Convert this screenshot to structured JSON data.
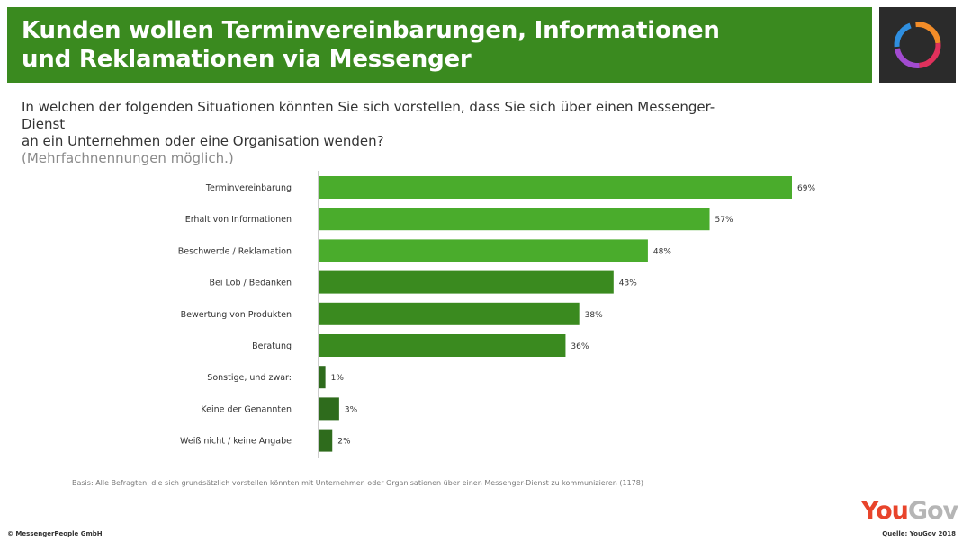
{
  "header": {
    "title_line1": "Kunden wollen Terminvereinbarungen, Informationen",
    "title_line2": "und Reklamationen via Messenger"
  },
  "question": {
    "line1": "In welchen der folgenden Situationen könnten Sie sich vorstellen, dass Sie sich über einen Messenger-Dienst",
    "line2": "an ein Unternehmen oder eine Organisation wenden?",
    "hint": "(Mehrfachnennungen möglich.)"
  },
  "footer": {
    "basis": "Basis: Alle Befragten, die sich grundsätzlich vorstellen könnten mit Unternehmen oder Organisationen über einen Messenger-Dienst zu kommunizieren (1178)",
    "copyright": "© MessengerPeople GmbH",
    "brand_you": "You",
    "brand_gov": "Gov",
    "source": "Quelle: YouGov 2018"
  },
  "colors": {
    "banner": "#3a8a1f",
    "bar_light": "#4aac2c",
    "bar_mid": "#3a8a1f",
    "bar_dark": "#2e6b1c"
  },
  "chart_data": {
    "type": "bar",
    "orientation": "horizontal",
    "title": "",
    "xlabel": "",
    "ylabel": "",
    "xlim": [
      0,
      69
    ],
    "grid": false,
    "categories": [
      "Terminvereinbarung",
      "Erhalt von Informationen",
      "Beschwerde / Reklamation",
      "Bei Lob / Bedanken",
      "Bewertung von Produkten",
      "Beratung",
      "Sonstige, und zwar:",
      "Keine der Genannten",
      "Weiß nicht / keine Angabe"
    ],
    "values": [
      69,
      57,
      48,
      43,
      38,
      36,
      1,
      3,
      2
    ],
    "value_labels": [
      "69%",
      "57%",
      "48%",
      "43%",
      "38%",
      "36%",
      "1%",
      "3%",
      "2%"
    ],
    "shade": [
      "light",
      "light",
      "light",
      "mid",
      "mid",
      "mid",
      "dark",
      "dark",
      "dark"
    ]
  }
}
